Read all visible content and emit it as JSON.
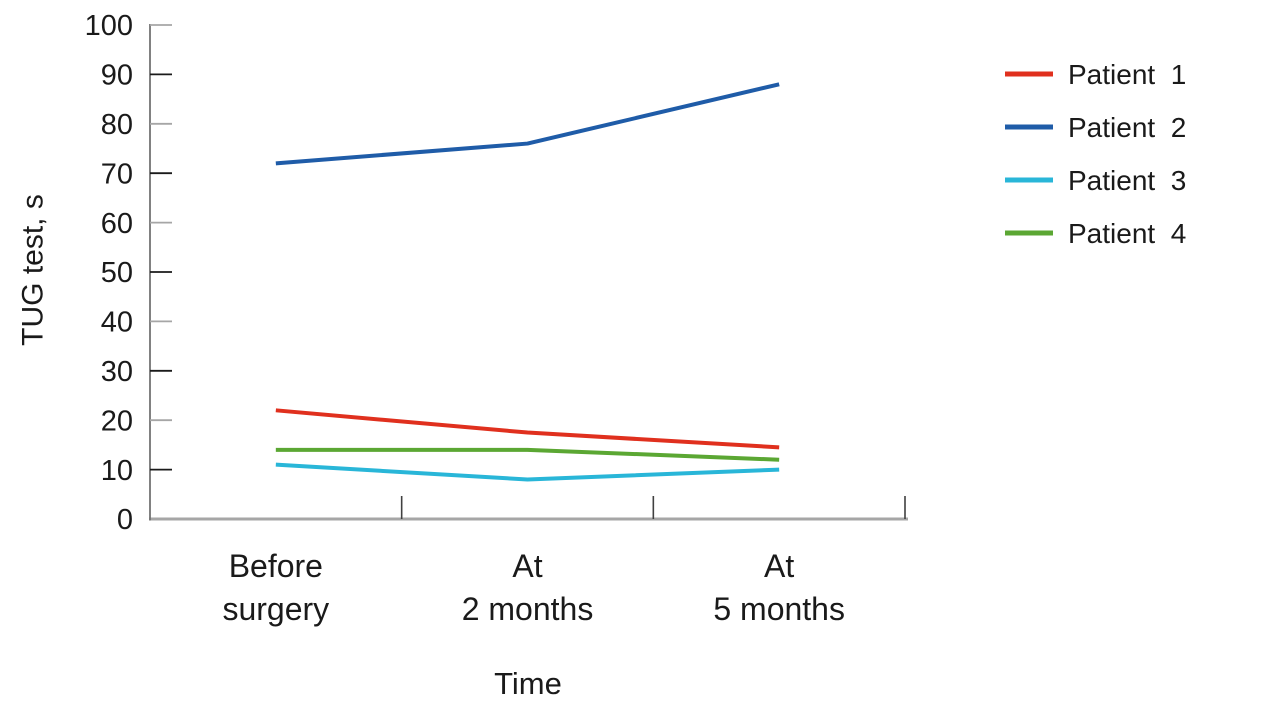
{
  "chart_data": {
    "type": "line",
    "title": "",
    "xlabel": "Time",
    "ylabel": "TUG test, s",
    "ylim": [
      0,
      100
    ],
    "ytick_step": 10,
    "grid": false,
    "legend_position": "right",
    "categories": [
      "Before surgery",
      "At 2 months",
      "At 5 months"
    ],
    "category_label_lines": [
      [
        "Before",
        "surgery"
      ],
      [
        "At",
        "2 months"
      ],
      [
        "At",
        "5 months"
      ]
    ],
    "series": [
      {
        "name": "Patient  1",
        "color": "#e0301e",
        "values": [
          22,
          17.5,
          14.5
        ]
      },
      {
        "name": "Patient  2",
        "color": "#1f5ca8",
        "values": [
          72,
          76,
          88
        ]
      },
      {
        "name": "Patient  3",
        "color": "#29b6d8",
        "values": [
          11,
          8,
          10
        ]
      },
      {
        "name": "Patient  4",
        "color": "#5ba733",
        "values": [
          14,
          14,
          12
        ]
      }
    ],
    "colors": {
      "x_axis_line": "#a6a6a6",
      "y_axis_line": "#737373",
      "y_tick_even": "#a6a6a6",
      "y_tick_odd": "#1a1a1a",
      "x_tick": "#404040",
      "text": "#1a1a1a"
    }
  }
}
